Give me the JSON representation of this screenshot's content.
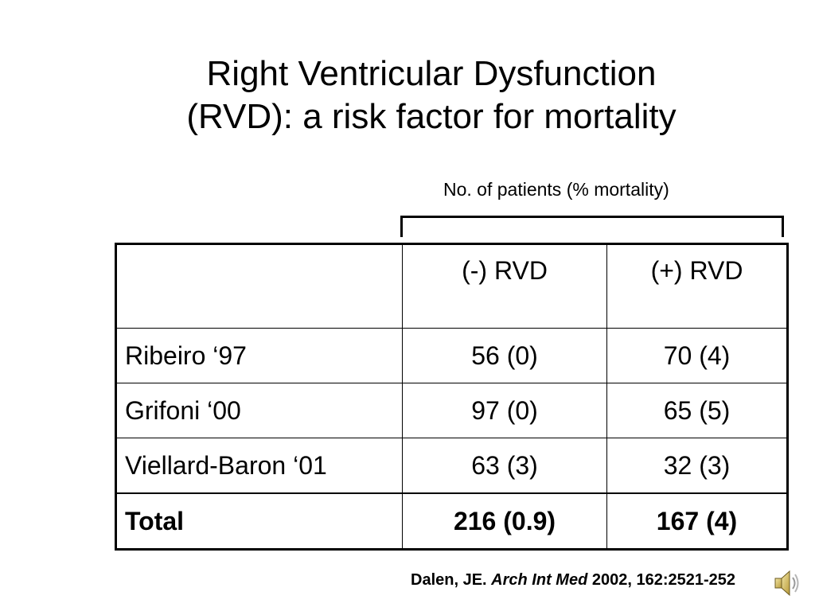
{
  "slide": {
    "title_line1": "Right Ventricular Dysfunction",
    "title_line2": "(RVD): a risk factor for mortality",
    "subtitle": "No. of patients (% mortality)"
  },
  "table": {
    "header": [
      "",
      "(-) RVD",
      "(+) RVD"
    ],
    "rows": [
      [
        "Ribeiro  ‘97",
        "56 (0)",
        "70 (4)"
      ],
      [
        "Grifoni  ‘00",
        "97 (0)",
        "65 (5)"
      ],
      [
        "Viellard-Baron  ‘01",
        "63 (3)",
        "32 (3)"
      ]
    ],
    "total": [
      "Total",
      "216 (0.9)",
      "167 (4)"
    ]
  },
  "citation": {
    "author": "Dalen, JE.",
    "journal": "Arch Int Med",
    "details": "2002, 162:2521-252"
  },
  "icons": {
    "speaker": "speaker-icon"
  }
}
